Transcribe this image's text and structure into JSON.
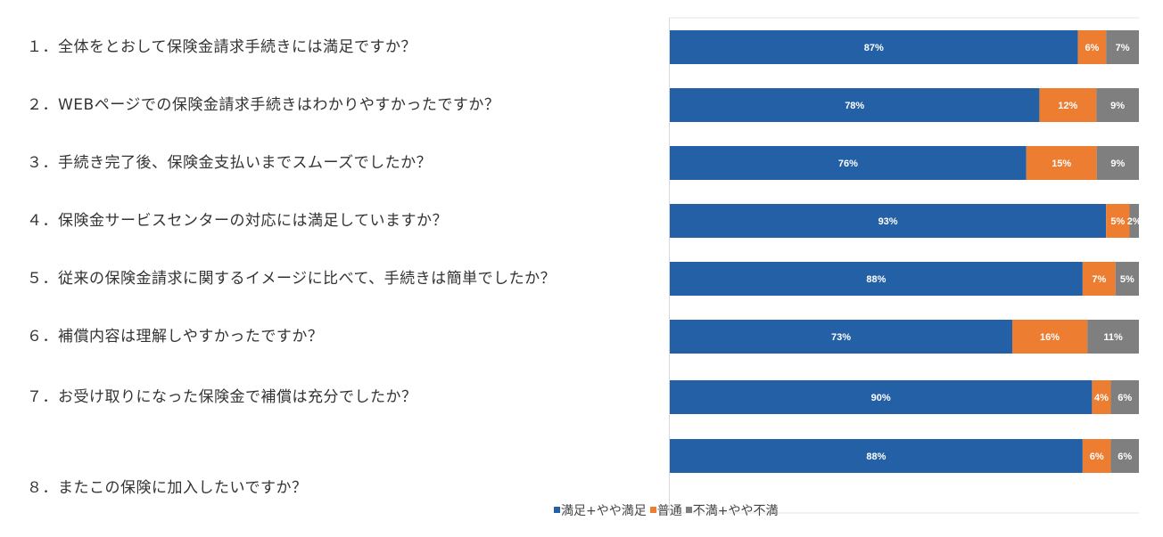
{
  "questions": [
    "１．全体をとおして保険金請求手続きには満足ですか？",
    "２．WEBページでの保険金請求手続きはわかりやすかったですか？",
    "３．手続き完了後、保険金支払いまでスムーズでしたか？",
    "４．保険金サービスセンターの対応には満足していますか？",
    "５．従来の保険金請求に関するイメージに比べて、手続きは簡単でしたか？",
    "６．補償内容は理解しやすかったですか？",
    "７．お受け取りになった保険金で補償は充分でしたか？",
    "８．またこの保険に加入したいですか？"
  ],
  "chart_data": {
    "type": "bar",
    "orientation": "horizontal",
    "stacked": "percent",
    "categories": [
      "１．全体をとおして保険金請求手続きには満足ですか？",
      "２．WEBページでの保険金請求手続きはわかりやすかったですか？",
      "３．手続き完了後、保険金支払いまでスムーズでしたか？",
      "４．保険金サービスセンターの対応には満足していますか？",
      "５．従来の保険金請求に関するイメージに比べて、手続きは簡単でしたか？",
      "６．補償内容は理解しやすかったですか？",
      "７．お受け取りになった保険金で補償は充分でしたか？",
      "８．またこの保険に加入したいですか？"
    ],
    "series": [
      {
        "name": "満足+やや満足",
        "color": "#2360A5",
        "values": [
          87,
          78,
          76,
          93,
          88,
          73,
          90,
          88
        ]
      },
      {
        "name": "普通",
        "color": "#ED7D31",
        "values": [
          6,
          12,
          15,
          5,
          7,
          16,
          4,
          6
        ]
      },
      {
        "name": "不満+やや不満",
        "color": "#7F7F7F",
        "values": [
          7,
          9,
          9,
          2,
          5,
          11,
          6,
          6
        ]
      }
    ],
    "xlim": [
      0,
      100
    ],
    "value_format": "percent",
    "grid": false,
    "legend_position": "bottom"
  }
}
